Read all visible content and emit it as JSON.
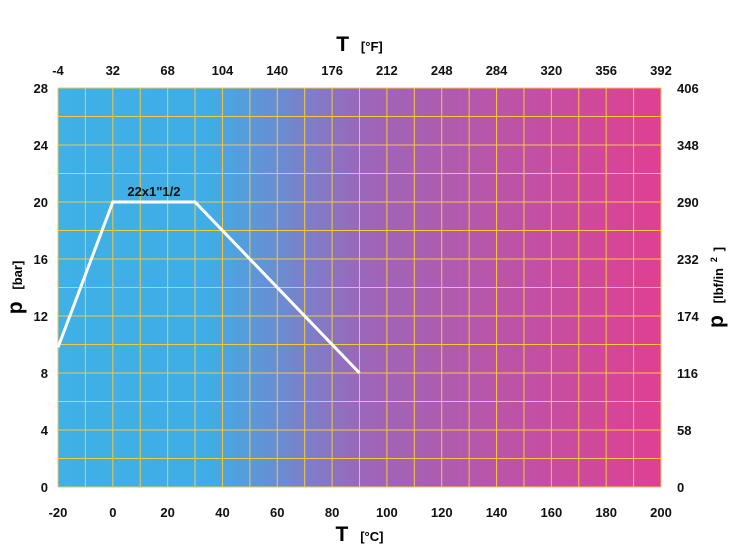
{
  "chart_data": {
    "type": "line",
    "x_bottom": {
      "label_symbol": "T",
      "label_unit": "[°C]",
      "range": [
        -20,
        200
      ],
      "ticks": [
        "-20",
        "0",
        "20",
        "40",
        "60",
        "80",
        "100",
        "120",
        "140",
        "160",
        "180",
        "200"
      ]
    },
    "x_top": {
      "label_symbol": "T",
      "label_unit": "[°F]",
      "range": [
        -4,
        392
      ],
      "ticks": [
        "-4",
        "32",
        "68",
        "104",
        "140",
        "176",
        "212",
        "248",
        "284",
        "320",
        "356",
        "392"
      ]
    },
    "y_left": {
      "label_symbol": "p",
      "label_unit": "[bar]",
      "range": [
        0,
        28
      ],
      "ticks": [
        "0",
        "4",
        "8",
        "12",
        "16",
        "20",
        "24",
        "28"
      ]
    },
    "y_right": {
      "label_symbol": "p",
      "label_unit": "[lbf/in",
      "label_sup": "2",
      "label_close": "]",
      "range": [
        0,
        406
      ],
      "ticks": [
        "0",
        "58",
        "116",
        "174",
        "232",
        "290",
        "348",
        "406"
      ]
    },
    "grid": true,
    "background_gradient": [
      "#3fb1e6",
      "#e03f92"
    ],
    "grid_color": "#f5c842",
    "series": [
      {
        "name": "22x1\"1/2",
        "color": "#ffffff",
        "points": [
          [
            -20,
            9.8
          ],
          [
            0,
            20
          ],
          [
            30,
            20
          ],
          [
            90,
            8
          ]
        ]
      }
    ]
  }
}
